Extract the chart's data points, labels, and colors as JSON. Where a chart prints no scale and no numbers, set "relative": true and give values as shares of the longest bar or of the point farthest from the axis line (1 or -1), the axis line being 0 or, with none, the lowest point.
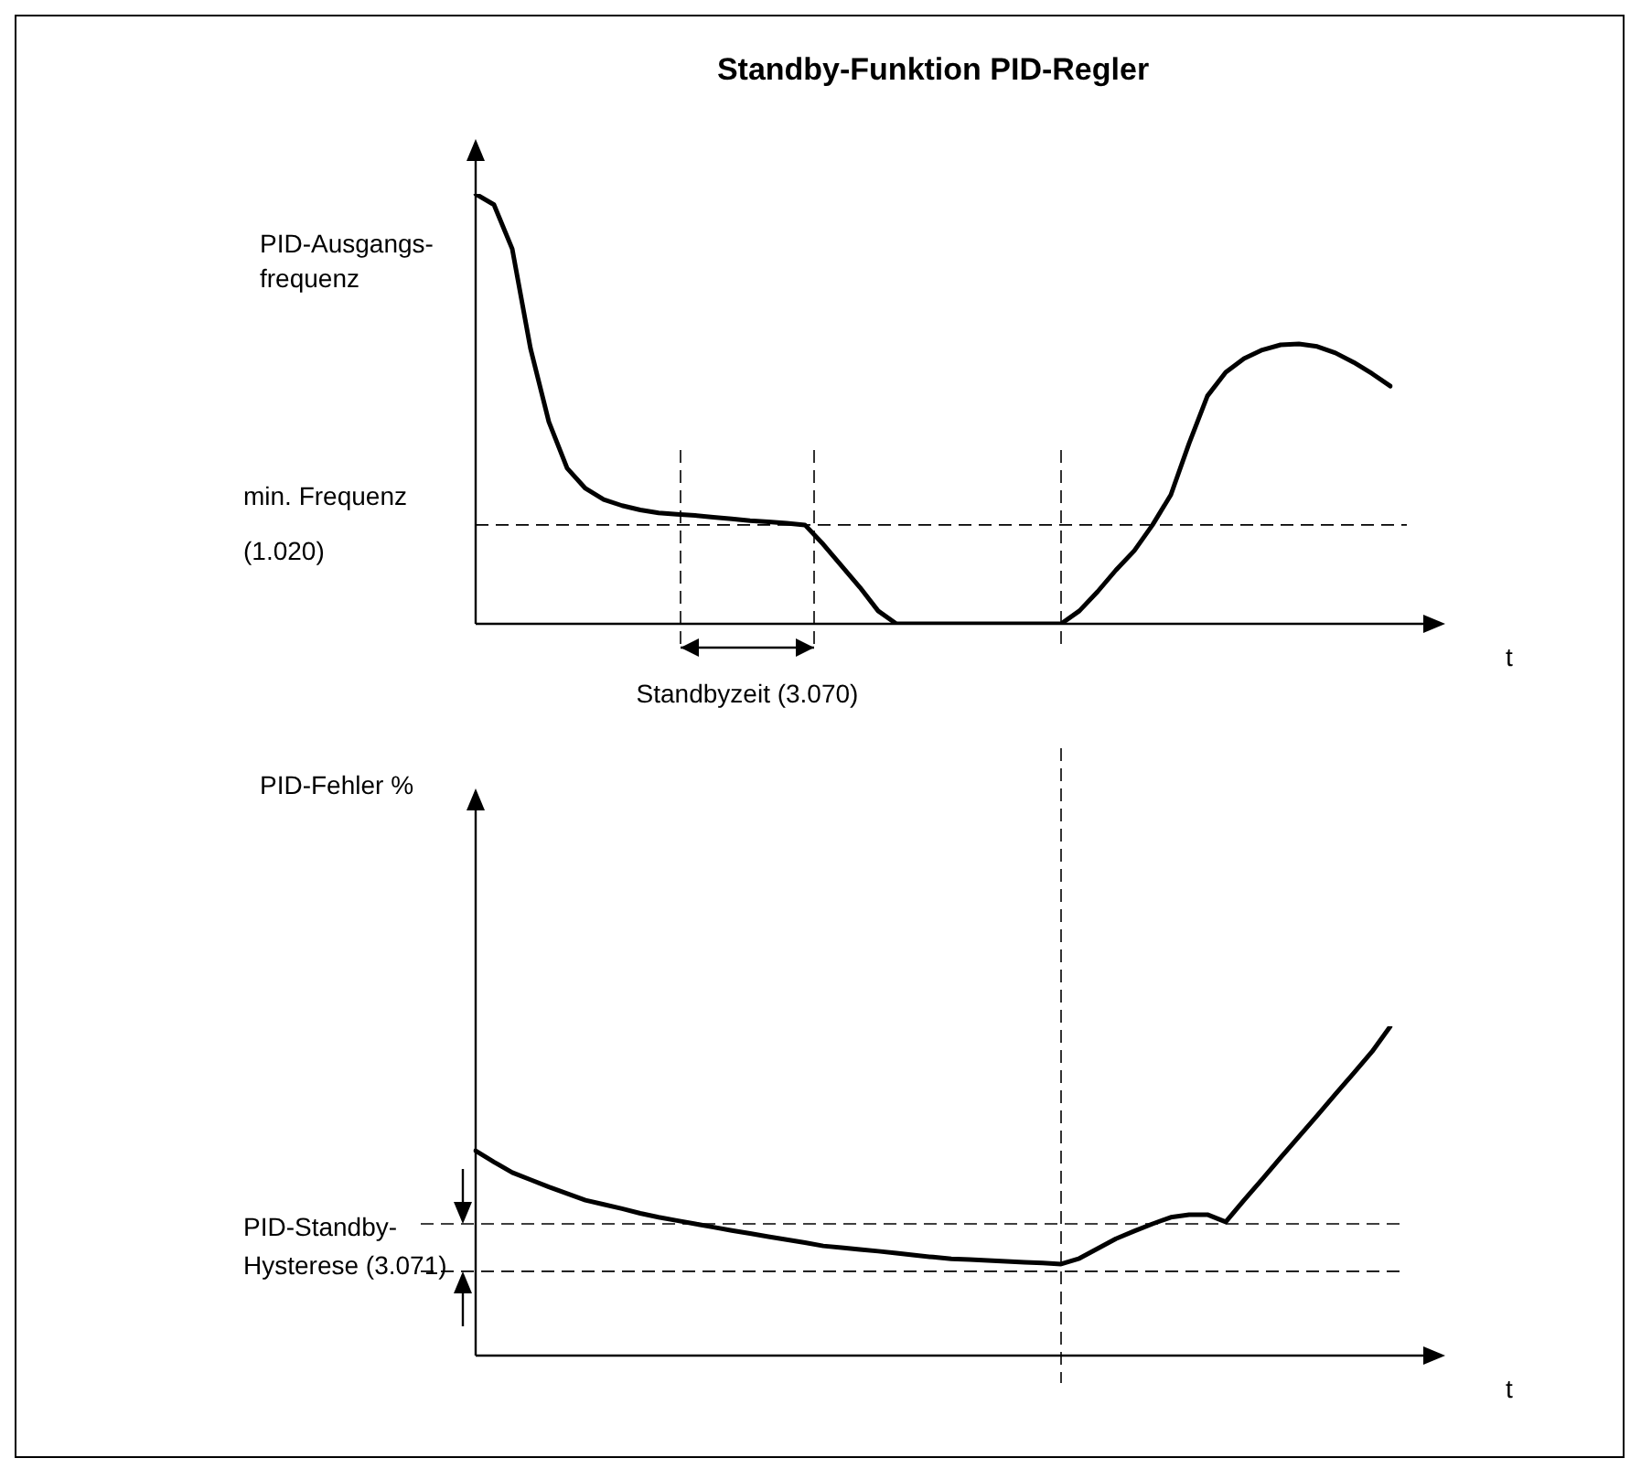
{
  "chart_data": [
    {
      "type": "line",
      "title": "Standby-Funktion PID-Regler",
      "ylabel": "PID-Ausgangs-frequenz",
      "xlabel": "t",
      "relative": true,
      "marker": "none",
      "line_style": "solid",
      "categories": [
        null,
        null,
        null,
        null,
        null,
        null,
        null,
        null,
        null,
        null,
        null,
        null,
        null,
        null,
        null,
        null,
        null,
        null,
        null,
        null,
        null,
        null,
        null,
        null,
        null,
        null,
        null,
        null,
        null,
        null,
        null,
        null,
        null,
        null,
        null,
        null,
        null,
        null,
        null,
        null,
        null,
        null,
        null,
        null,
        null,
        null,
        null,
        null,
        null,
        null,
        null
      ],
      "series": [
        {
          "color": "#000000",
          "values": [
            1,
            0.975,
            0.872,
            0.64,
            0.47,
            0.362,
            0.315,
            0.289,
            0.275,
            0.265,
            0.258,
            0.255,
            0.252,
            0.248,
            0.244,
            0.24,
            0.237,
            0.234,
            0.23,
            0.185,
            0.135,
            0.085,
            0.03,
            0,
            0,
            0,
            0,
            0,
            0,
            0,
            0,
            0,
            0,
            0.03,
            0.075,
            0.125,
            0.17,
            0.23,
            0.3,
            0.42,
            0.53,
            0.585,
            0.617,
            0.637,
            0.649,
            0.651,
            0.645,
            0.63,
            0.608,
            0.582,
            0.553
          ]
        }
      ],
      "ref_lines": [
        {
          "axis": "y",
          "value": 0.23,
          "label": "min. Frequenz (1.020)",
          "line_style": "dashed"
        }
      ],
      "annotations": [
        "Standbyzeit (3.070)"
      ]
    },
    {
      "type": "line",
      "ylabel": "PID-Fehler %",
      "xlabel": "t",
      "relative": true,
      "marker": "none",
      "line_style": "solid",
      "categories": [
        null,
        null,
        null,
        null,
        null,
        null,
        null,
        null,
        null,
        null,
        null,
        null,
        null,
        null,
        null,
        null,
        null,
        null,
        null,
        null,
        null,
        null,
        null,
        null,
        null,
        null,
        null,
        null,
        null,
        null,
        null,
        null,
        null,
        null,
        null,
        null,
        null,
        null,
        null,
        null,
        null,
        null,
        null,
        null,
        null,
        null,
        null,
        null,
        null,
        null,
        null
      ],
      "series": [
        {
          "color": "#000000",
          "values": [
            0.622,
            0.588,
            0.556,
            0.534,
            0.512,
            0.492,
            0.472,
            0.459,
            0.446,
            0.432,
            0.42,
            0.41,
            0.4,
            0.39,
            0.38,
            0.371,
            0.361,
            0.352,
            0.343,
            0.333,
            0.328,
            0.322,
            0.317,
            0.311,
            0.305,
            0.299,
            0.294,
            0.292,
            0.289,
            0.286,
            0.283,
            0.281,
            0.278,
            0.295,
            0.325,
            0.355,
            0.378,
            0.4,
            0.42,
            0.428,
            0.428,
            0.406,
            0.472,
            0.536,
            0.601,
            0.665,
            0.729,
            0.794,
            0.858,
            0.923,
            1
          ]
        }
      ],
      "ref_lines": [
        {
          "axis": "y",
          "value": 0.4,
          "label": "PID-Standby-Hysterese (3.071)",
          "line_style": "dashed"
        },
        {
          "axis": "y",
          "value": 0.256,
          "line_style": "dashed"
        }
      ]
    }
  ]
}
